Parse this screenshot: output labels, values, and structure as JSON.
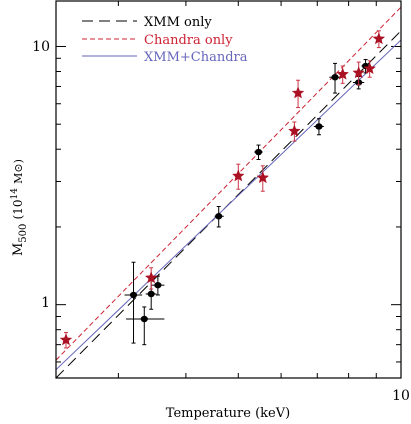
{
  "chart_data": {
    "type": "scatter",
    "title": "",
    "xlabel": "Temperature (keV)",
    "ylabel_main": "M",
    "ylabel_sub": "500",
    "ylabel_units": "(10",
    "ylabel_exp": "14",
    "ylabel_sym": "M⊙)",
    "xscale": "log",
    "yscale": "log",
    "xlim": [
      2.3,
      10
    ],
    "ylim": [
      0.52,
      15
    ],
    "x_tick_labels": [
      {
        "value": 10,
        "label": "10"
      }
    ],
    "y_tick_labels": [
      {
        "value": 1,
        "label": "1"
      },
      {
        "value": 10,
        "label": "10"
      }
    ],
    "grid": false,
    "legend_position": "top-left",
    "legend": [
      {
        "name": "XMM only",
        "color": "#000000",
        "dash": "long"
      },
      {
        "name": "Chandra only",
        "color": "#cc2233",
        "dash": "short"
      },
      {
        "name": "XMM+Chandra",
        "color": "#6666bb",
        "dash": "solid"
      }
    ],
    "lines": [
      {
        "name": "XMM only",
        "color": "#000000",
        "x": [
          2.3,
          10
        ],
        "y": [
          0.52,
          11.5
        ]
      },
      {
        "name": "Chandra only",
        "color": "#cc2233",
        "x": [
          2.3,
          10
        ],
        "y": [
          0.61,
          14.2
        ]
      },
      {
        "name": "XMM+Chandra",
        "color": "#6666bb",
        "x": [
          2.3,
          10
        ],
        "y": [
          0.56,
          10.6
        ]
      }
    ],
    "series": [
      {
        "name": "XMM",
        "marker": "circle",
        "color": "#000000",
        "points": [
          {
            "x": 3.2,
            "y": 1.09,
            "xerr": [
              0.12,
              0.12
            ],
            "yerr": [
              0.38,
              0.37
            ]
          },
          {
            "x": 3.35,
            "y": 0.88,
            "xerr": [
              0.25,
              0.3
            ],
            "yerr": [
              0.18,
              0.1
            ]
          },
          {
            "x": 3.45,
            "y": 1.1,
            "xerr": [
              0.08,
              0.08
            ],
            "yerr": [
              0.14,
              0.14
            ]
          },
          {
            "x": 3.55,
            "y": 1.19,
            "xerr": [
              0.1,
              0.1
            ],
            "yerr": [
              0.1,
              0.1
            ]
          },
          {
            "x": 4.6,
            "y": 2.2,
            "xerr": [
              0.08,
              0.1
            ],
            "yerr": [
              0.2,
              0.2
            ]
          },
          {
            "x": 5.45,
            "y": 3.9,
            "xerr": [
              0.1,
              0.1
            ],
            "yerr": [
              0.25,
              0.25
            ]
          },
          {
            "x": 7.05,
            "y": 4.9,
            "xerr": [
              0.15,
              0.15
            ],
            "yerr": [
              0.35,
              0.35
            ]
          },
          {
            "x": 7.55,
            "y": 7.6,
            "xerr": [
              0.18,
              0.25
            ],
            "yerr": [
              1.0,
              1.0
            ]
          },
          {
            "x": 8.35,
            "y": 7.25,
            "xerr": [
              0.2,
              0.2
            ],
            "yerr": [
              0.4,
              0.4
            ]
          },
          {
            "x": 8.6,
            "y": 8.4,
            "xerr": [
              0.15,
              0.2
            ],
            "yerr": [
              0.5,
              0.5
            ]
          }
        ]
      },
      {
        "name": "Chandra",
        "marker": "star",
        "color": "#aa1122",
        "points": [
          {
            "x": 2.4,
            "y": 0.73,
            "xerr": [
              0,
              0
            ],
            "yerr": [
              0.05,
              0.05
            ]
          },
          {
            "x": 3.45,
            "y": 1.27,
            "xerr": [
              0,
              0
            ],
            "yerr": [
              0.12,
              0.12
            ]
          },
          {
            "x": 5.0,
            "y": 3.15,
            "xerr": [
              0,
              0
            ],
            "yerr": [
              0.35,
              0.35
            ]
          },
          {
            "x": 5.55,
            "y": 3.1,
            "xerr": [
              0,
              0
            ],
            "yerr": [
              0.35,
              0.35
            ]
          },
          {
            "x": 6.35,
            "y": 4.7,
            "xerr": [
              0,
              0
            ],
            "yerr": [
              0.4,
              0.4
            ]
          },
          {
            "x": 6.45,
            "y": 6.6,
            "xerr": [
              0,
              0
            ],
            "yerr": [
              0.8,
              0.8
            ]
          },
          {
            "x": 7.8,
            "y": 7.8,
            "xerr": [
              0,
              0
            ],
            "yerr": [
              0.6,
              0.6
            ]
          },
          {
            "x": 8.35,
            "y": 7.9,
            "xerr": [
              0,
              0
            ],
            "yerr": [
              0.8,
              0.8
            ]
          },
          {
            "x": 8.75,
            "y": 8.2,
            "xerr": [
              0,
              0
            ],
            "yerr": [
              0.6,
              0.6
            ]
          },
          {
            "x": 9.1,
            "y": 10.7,
            "xerr": [
              0,
              0
            ],
            "yerr": [
              0.8,
              0.8
            ]
          }
        ]
      }
    ]
  }
}
